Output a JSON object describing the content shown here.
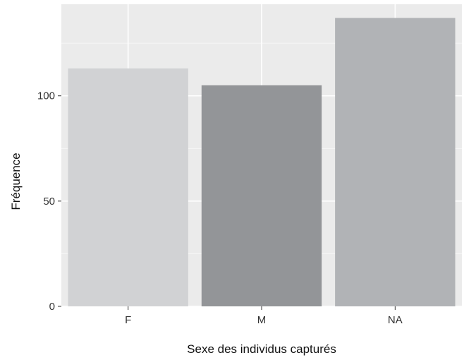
{
  "chart_data": {
    "type": "bar",
    "title": "",
    "xlabel": "Sexe des individus capturés",
    "ylabel": "Fréquence",
    "categories": [
      "F",
      "M",
      "NA"
    ],
    "values": [
      113,
      105,
      137
    ],
    "bar_colors": [
      "#d1d2d4",
      "#939598",
      "#b1b3b6"
    ],
    "ylim": [
      0,
      143.5
    ],
    "yticks": [
      0,
      50,
      100
    ],
    "ytick_labels": [
      "0",
      "50",
      "100"
    ],
    "grid": true,
    "legend": "none",
    "panel_background": "#ebebeb"
  }
}
